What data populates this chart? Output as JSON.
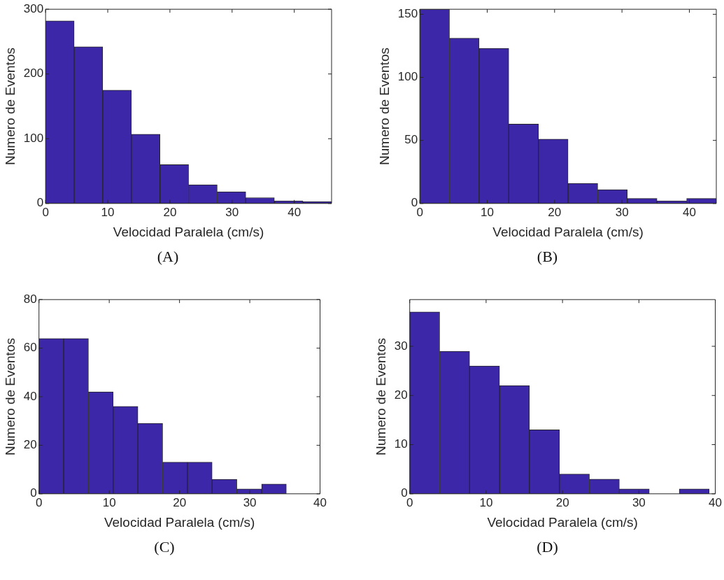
{
  "chart_data": [
    {
      "type": "histogram",
      "xlabel": "Velocidad Paralela (cm/s)",
      "ylabel": "Numero de Eventos",
      "annotations": [
        "(A)"
      ],
      "color": "#3c27a8",
      "bins": [
        0,
        4.6,
        9.2,
        13.8,
        18.4,
        23,
        27.6,
        32.2,
        36.8,
        41.4,
        46
      ],
      "values": [
        282,
        242,
        175,
        107,
        60,
        29,
        18,
        9,
        4,
        3
      ],
      "xlim": [
        0,
        46
      ],
      "xticks": [
        0,
        10,
        20,
        30,
        40
      ],
      "ylim": [
        0,
        300
      ],
      "yticks": [
        0,
        100,
        200,
        300
      ],
      "grid": false
    },
    {
      "type": "histogram",
      "xlabel": "Velocidad Paralela (cm/s)",
      "ylabel": "Numero de Eventos",
      "annotations": [
        "(B)"
      ],
      "color": "#3c27a8",
      "bins": [
        0,
        4.4,
        8.8,
        13.2,
        17.6,
        22,
        26.4,
        30.8,
        35.2,
        39.6,
        44
      ],
      "values": [
        154,
        131,
        123,
        63,
        51,
        16,
        11,
        4,
        2,
        4
      ],
      "xlim": [
        0,
        44
      ],
      "xticks": [
        0,
        10,
        20,
        30,
        40
      ],
      "ylim": [
        0,
        154
      ],
      "yticks": [
        0,
        50,
        100,
        150
      ],
      "grid": false
    },
    {
      "type": "histogram",
      "xlabel": "Velocidad Paralela (cm/s)",
      "ylabel": "Numero de Eventos",
      "annotations": [
        "(C)"
      ],
      "color": "#3c27a8",
      "bins": [
        0,
        3.52,
        7.04,
        10.56,
        14.08,
        17.6,
        21.12,
        24.64,
        28.16,
        31.68,
        35.2,
        38.72
      ],
      "values": [
        64,
        64,
        42,
        36,
        29,
        13,
        13,
        6,
        2,
        4,
        0
      ],
      "xlim": [
        0,
        40
      ],
      "xticks": [
        0,
        10,
        20,
        30,
        40
      ],
      "ylim": [
        0,
        80
      ],
      "yticks": [
        0,
        20,
        40,
        60,
        80
      ],
      "grid": false
    },
    {
      "type": "histogram",
      "xlabel": "Velocidad Paralela (cm/s)",
      "ylabel": "Numero de Eventos",
      "annotations": [
        "(D)"
      ],
      "color": "#3c27a8",
      "bins": [
        0,
        3.92,
        7.84,
        11.76,
        15.68,
        19.6,
        23.52,
        27.44,
        31.36,
        35.28,
        39.2
      ],
      "values": [
        37,
        29,
        26,
        22,
        13,
        4,
        3,
        1,
        0,
        1
      ],
      "xlim": [
        0,
        40
      ],
      "xticks": [
        0,
        10,
        20,
        30,
        40
      ],
      "ylim": [
        0,
        39.5
      ],
      "yticks": [
        0,
        10,
        20,
        30
      ],
      "grid": false
    }
  ]
}
